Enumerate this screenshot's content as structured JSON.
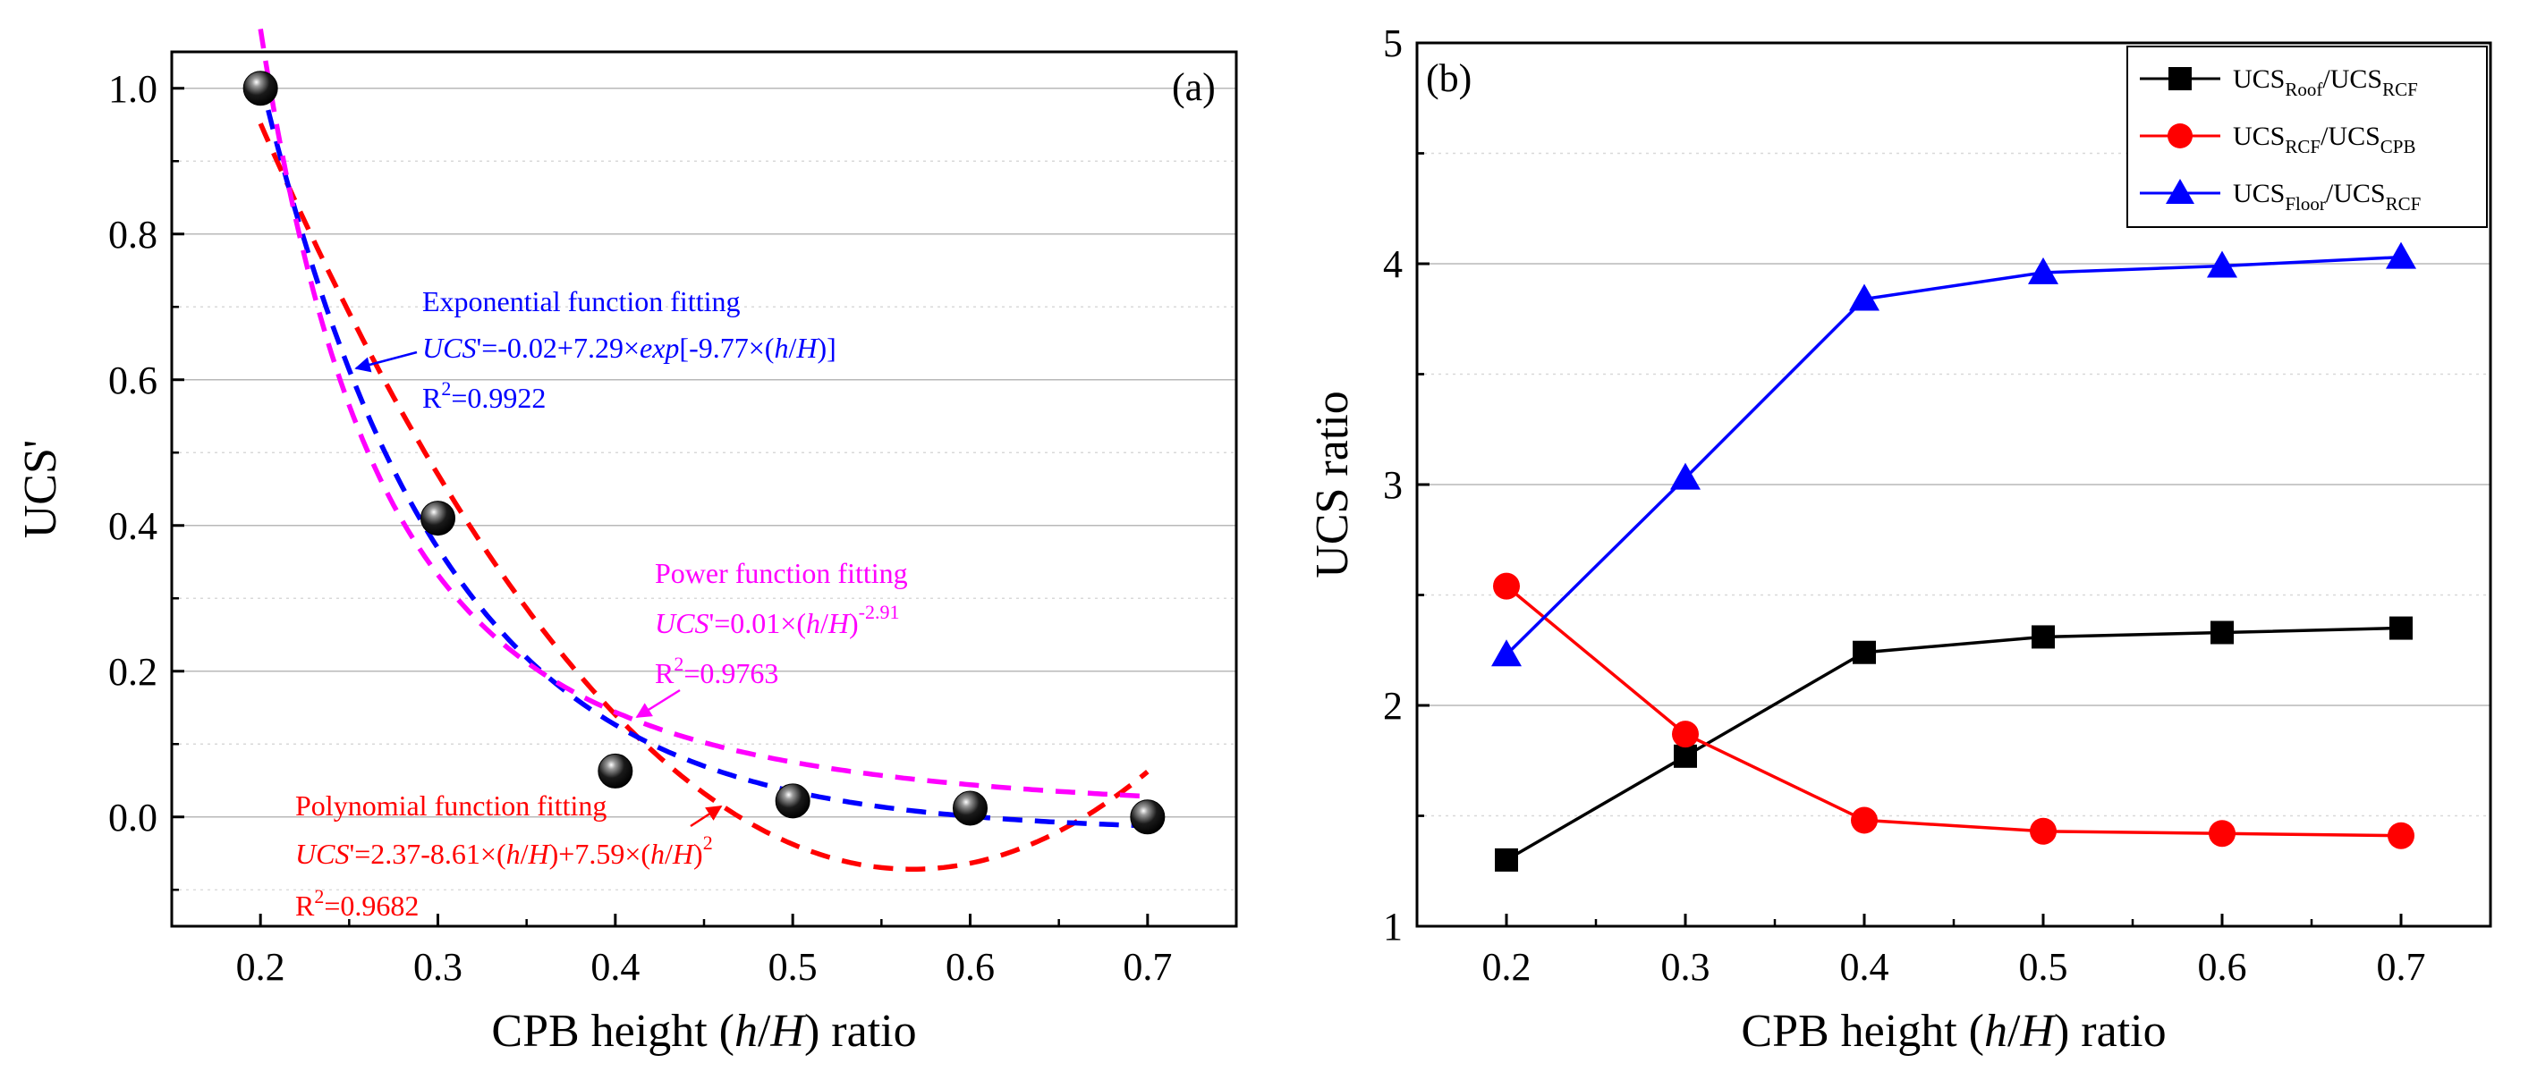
{
  "chart_data": [
    {
      "type": "scatter",
      "panel": "(a)",
      "xlabel_parts": [
        "CPB height (",
        "h",
        "/",
        "H",
        ") ratio"
      ],
      "ylabel": "UCS'",
      "xlim": [
        0.15,
        0.75
      ],
      "ylim": [
        -0.15,
        1.05
      ],
      "xticks": [
        "0.2",
        "0.3",
        "0.4",
        "0.5",
        "0.6",
        "0.7"
      ],
      "xtick_values": [
        0.2,
        0.3,
        0.4,
        0.5,
        0.6,
        0.7
      ],
      "yticks": [
        "0.0",
        "0.2",
        "0.4",
        "0.6",
        "0.8",
        "1.0"
      ],
      "ytick_values": [
        0.0,
        0.2,
        0.4,
        0.6,
        0.8,
        1.0
      ],
      "grid": true,
      "points": {
        "x": [
          0.2,
          0.3,
          0.4,
          0.5,
          0.6,
          0.7
        ],
        "y": [
          1.0,
          0.41,
          0.063,
          0.022,
          0.012,
          0.0
        ]
      },
      "fits": [
        {
          "name": "Exponential function fitting",
          "color": "#0000ff",
          "model": "exponential",
          "coef": [
            -0.02,
            7.29,
            -9.77
          ],
          "title": "Exponential function fitting",
          "eq_prefix": "UCS",
          "eq_text": "'=-0.02+7.29×",
          "eq_exp": "exp",
          "eq_tail1": "[-9.77×(",
          "eq_h": "h",
          "eq_slash": "/",
          "eq_H": "H",
          "eq_tail2": ")]",
          "r2_label": "R",
          "r2_sup": "2",
          "r2_value": "=0.9922"
        },
        {
          "name": "Power function fitting",
          "color": "#ff00ff",
          "model": "power",
          "coef": [
            0.01,
            -2.91
          ],
          "title": "Power function fitting",
          "eq_prefix": "UCS",
          "eq_text": "'=0.01×(",
          "eq_h": "h",
          "eq_slash": "/",
          "eq_H": "H",
          "eq_close": ")",
          "eq_sup": "-2.91",
          "r2_label": "R",
          "r2_sup": "2",
          "r2_value": "=0.9763"
        },
        {
          "name": "Polynomial function fitting",
          "color": "#ff0000",
          "model": "polynomial",
          "coef": [
            2.37,
            -8.61,
            7.59
          ],
          "title": "Polynomial function fitting",
          "eq_prefix": "UCS",
          "eq_text": "'=2.37-8.61×(",
          "eq_h": "h",
          "eq_slash": "/",
          "eq_H": "H",
          "eq_mid": ")+7.59×(",
          "eq_h2": "h",
          "eq_slash2": "/",
          "eq_H2": "H",
          "eq_close": ")",
          "eq_sup": "2",
          "r2_label": "R",
          "r2_sup": "2",
          "r2_value": "=0.9682"
        }
      ]
    },
    {
      "type": "line",
      "panel": "(b)",
      "xlabel_parts": [
        "CPB height (",
        "h",
        "/",
        "H",
        ") ratio"
      ],
      "ylabel": "UCS ratio",
      "xlim": [
        0.15,
        0.75
      ],
      "ylim": [
        1,
        5
      ],
      "xticks": [
        "0.2",
        "0.3",
        "0.4",
        "0.5",
        "0.6",
        "0.7"
      ],
      "xtick_values": [
        0.2,
        0.3,
        0.4,
        0.5,
        0.6,
        0.7
      ],
      "yticks": [
        "1",
        "2",
        "3",
        "4",
        "5"
      ],
      "ytick_values": [
        1,
        2,
        3,
        4,
        5
      ],
      "grid": true,
      "legend_position": "top-right",
      "x": [
        0.2,
        0.3,
        0.4,
        0.5,
        0.6,
        0.7
      ],
      "series": [
        {
          "name": "UCSRoof/UCSRCF",
          "label_main": "UCS",
          "label_sub": "Roof",
          "label_sep": "/UCS",
          "label_sub2": "RCF",
          "color": "#000000",
          "marker": "square",
          "values": [
            1.3,
            1.77,
            2.24,
            2.31,
            2.33,
            2.35
          ]
        },
        {
          "name": "UCSRCF/UCSCPB",
          "label_main": "UCS",
          "label_sub": "RCF",
          "label_sep": "/UCS",
          "label_sub2": "CPB",
          "color": "#ff0000",
          "marker": "circle",
          "values": [
            2.54,
            1.87,
            1.48,
            1.43,
            1.42,
            1.41
          ]
        },
        {
          "name": "UCSFloor/UCSRCF",
          "label_main": "UCS",
          "label_sub": "Floor",
          "label_sep": "/UCS",
          "label_sub2": "RCF",
          "color": "#0000ff",
          "marker": "triangle",
          "values": [
            2.23,
            3.03,
            3.84,
            3.96,
            3.99,
            4.03
          ]
        }
      ]
    }
  ]
}
